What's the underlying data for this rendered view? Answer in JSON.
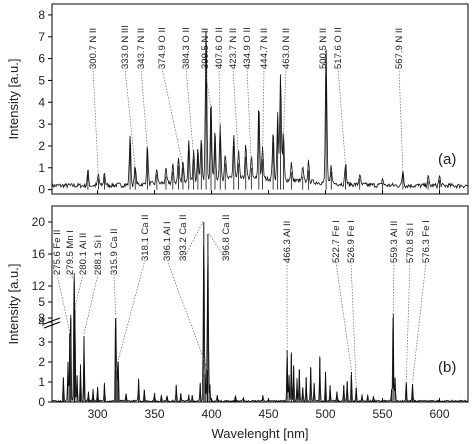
{
  "chart_data": {
    "xlabel": "Wavelenght [nm]",
    "xlim": [
      260,
      625
    ],
    "xticks": [
      300,
      350,
      400,
      450,
      500,
      550,
      600
    ],
    "panels": [
      {
        "id": "a",
        "panel_label": "(a)",
        "type": "line",
        "ylabel": "Intensity [a.u.]",
        "ylim": [
          -0.2,
          8.5
        ],
        "yticks": [
          0,
          1,
          2,
          3,
          4,
          5,
          6,
          7,
          8
        ],
        "peaks": [
          {
            "x": 291.5,
            "y": 0.7
          },
          {
            "x": 300.7,
            "y": 0.5
          },
          {
            "x": 306.0,
            "y": 0.6
          },
          {
            "x": 328.5,
            "y": 2.3
          },
          {
            "x": 333.0,
            "y": 0.9
          },
          {
            "x": 343.7,
            "y": 1.8
          },
          {
            "x": 352.0,
            "y": 0.7
          },
          {
            "x": 360.0,
            "y": 0.6
          },
          {
            "x": 366.0,
            "y": 0.8
          },
          {
            "x": 371.0,
            "y": 1.1
          },
          {
            "x": 374.9,
            "y": 1.0
          },
          {
            "x": 380.0,
            "y": 1.8
          },
          {
            "x": 384.3,
            "y": 1.4
          },
          {
            "x": 388.0,
            "y": 1.6
          },
          {
            "x": 391.0,
            "y": 2.0
          },
          {
            "x": 395.2,
            "y": 7.2
          },
          {
            "x": 399.5,
            "y": 3.6
          },
          {
            "x": 403.0,
            "y": 2.3
          },
          {
            "x": 407.6,
            "y": 2.4
          },
          {
            "x": 412.0,
            "y": 1.2
          },
          {
            "x": 419.5,
            "y": 2.0
          },
          {
            "x": 423.7,
            "y": 1.2
          },
          {
            "x": 430.0,
            "y": 1.5
          },
          {
            "x": 434.9,
            "y": 1.0
          },
          {
            "x": 441.5,
            "y": 3.4
          },
          {
            "x": 444.7,
            "y": 1.4
          },
          {
            "x": 454.0,
            "y": 2.2
          },
          {
            "x": 458.0,
            "y": 3.0
          },
          {
            "x": 460.5,
            "y": 4.9
          },
          {
            "x": 463.0,
            "y": 2.2
          },
          {
            "x": 470.0,
            "y": 0.8
          },
          {
            "x": 480.0,
            "y": 0.6
          },
          {
            "x": 485.0,
            "y": 0.9
          },
          {
            "x": 500.5,
            "y": 6.2
          },
          {
            "x": 505.0,
            "y": 0.8
          },
          {
            "x": 517.6,
            "y": 1.0
          },
          {
            "x": 530.0,
            "y": 0.5
          },
          {
            "x": 550.0,
            "y": 0.3
          },
          {
            "x": 567.9,
            "y": 0.7
          },
          {
            "x": 590.0,
            "y": 0.4
          },
          {
            "x": 600.0,
            "y": 0.45
          }
        ],
        "annotations": [
          {
            "text": "300.7 N II",
            "x": 300.7
          },
          {
            "text": "333.0 N III",
            "x": 333.0
          },
          {
            "text": "343.7 N II",
            "x": 343.7
          },
          {
            "text": "374.9 O II",
            "x": 374.9
          },
          {
            "text": "384.3 O II",
            "x": 384.3
          },
          {
            "text": "399.5 N II",
            "x": 399.5
          },
          {
            "text": "407.6 O II",
            "x": 407.6
          },
          {
            "text": "423.7 N II",
            "x": 423.7
          },
          {
            "text": "434.9 O II",
            "x": 434.9
          },
          {
            "text": "444.7 N II",
            "x": 444.7
          },
          {
            "text": "463.0 N II",
            "x": 463.0
          },
          {
            "text": "500.5 N II",
            "x": 500.5
          },
          {
            "text": "517.6 O II",
            "x": 517.6
          },
          {
            "text": "567.9 N II",
            "x": 567.9
          }
        ]
      },
      {
        "id": "b",
        "panel_label": "(b)",
        "type": "line",
        "ylabel": "Intensity [a.u.]",
        "broken_axis": true,
        "yticks": [
          0,
          1,
          2,
          3,
          4,
          5,
          8,
          12,
          16,
          20
        ],
        "peaks": [
          {
            "x": 270.0,
            "y": 1.2
          },
          {
            "x": 274.0,
            "y": 2.0
          },
          {
            "x": 275.6,
            "y": 3.4
          },
          {
            "x": 276.5,
            "y": 4.2
          },
          {
            "x": 279.5,
            "y": 12.5
          },
          {
            "x": 280.1,
            "y": 4.6
          },
          {
            "x": 282.0,
            "y": 1.3
          },
          {
            "x": 285.0,
            "y": 1.8
          },
          {
            "x": 288.1,
            "y": 3.3
          },
          {
            "x": 292.0,
            "y": 0.5
          },
          {
            "x": 296.0,
            "y": 0.6
          },
          {
            "x": 300.0,
            "y": 0.7
          },
          {
            "x": 306.0,
            "y": 0.9
          },
          {
            "x": 315.9,
            "y": 6.8
          },
          {
            "x": 317.0,
            "y": 1.6
          },
          {
            "x": 318.1,
            "y": 2.0
          },
          {
            "x": 325.0,
            "y": 0.4
          },
          {
            "x": 336.0,
            "y": 1.1
          },
          {
            "x": 341.0,
            "y": 0.6
          },
          {
            "x": 350.0,
            "y": 0.4
          },
          {
            "x": 356.0,
            "y": 0.3
          },
          {
            "x": 361.0,
            "y": 0.3
          },
          {
            "x": 369.0,
            "y": 0.8
          },
          {
            "x": 373.0,
            "y": 0.4
          },
          {
            "x": 380.0,
            "y": 0.3
          },
          {
            "x": 383.0,
            "y": 0.3
          },
          {
            "x": 390.0,
            "y": 0.9
          },
          {
            "x": 393.2,
            "y": 20.0
          },
          {
            "x": 394.4,
            "y": 1.4
          },
          {
            "x": 396.1,
            "y": 1.6
          },
          {
            "x": 396.8,
            "y": 18.5
          },
          {
            "x": 398.5,
            "y": 0.8
          },
          {
            "x": 405.0,
            "y": 0.3
          },
          {
            "x": 421.0,
            "y": 0.3
          },
          {
            "x": 428.0,
            "y": 0.2
          },
          {
            "x": 445.0,
            "y": 0.3
          },
          {
            "x": 466.3,
            "y": 2.6
          },
          {
            "x": 468.0,
            "y": 1.3
          },
          {
            "x": 470.0,
            "y": 2.4
          },
          {
            "x": 472.0,
            "y": 1.8
          },
          {
            "x": 475.0,
            "y": 1.1
          },
          {
            "x": 477.0,
            "y": 1.6
          },
          {
            "x": 480.0,
            "y": 0.7
          },
          {
            "x": 483.0,
            "y": 1.2
          },
          {
            "x": 487.0,
            "y": 1.7
          },
          {
            "x": 490.0,
            "y": 0.9
          },
          {
            "x": 495.0,
            "y": 2.2
          },
          {
            "x": 500.0,
            "y": 1.5
          },
          {
            "x": 504.0,
            "y": 0.8
          },
          {
            "x": 510.0,
            "y": 0.5
          },
          {
            "x": 516.0,
            "y": 0.8
          },
          {
            "x": 519.0,
            "y": 1.0
          },
          {
            "x": 522.7,
            "y": 1.5
          },
          {
            "x": 526.9,
            "y": 0.7
          },
          {
            "x": 532.0,
            "y": 0.3
          },
          {
            "x": 537.0,
            "y": 0.3
          },
          {
            "x": 542.0,
            "y": 0.25
          },
          {
            "x": 558.0,
            "y": 0.6
          },
          {
            "x": 559.3,
            "y": 5.1
          },
          {
            "x": 561.0,
            "y": 1.2
          },
          {
            "x": 570.8,
            "y": 1.0
          },
          {
            "x": 576.3,
            "y": 0.9
          }
        ],
        "annotations": [
          {
            "text": "275.6 Fe II",
            "x": 275.6
          },
          {
            "text": "279.5 Mn I",
            "x": 279.5
          },
          {
            "text": "280.1 Al II",
            "x": 280.1
          },
          {
            "text": "288.1 Si I",
            "x": 288.1
          },
          {
            "text": "315.9 Ca II",
            "x": 315.9
          },
          {
            "text": "318.1 Ca II",
            "x": 318.1
          },
          {
            "text": "396.1 Al I",
            "x": 396.1
          },
          {
            "text": "393.2 Ca II",
            "x": 393.2
          },
          {
            "text": "396.8 Ca II",
            "x": 396.8
          },
          {
            "text": "466.3 Al II",
            "x": 466.3
          },
          {
            "text": "522.7 Fe I",
            "x": 522.7
          },
          {
            "text": "526.9 Fe I",
            "x": 526.9
          },
          {
            "text": "559.3 Al II",
            "x": 559.3
          },
          {
            "text": "570.8 Si I",
            "x": 570.8
          },
          {
            "text": "576.3 Fe I",
            "x": 576.3
          }
        ]
      }
    ]
  }
}
